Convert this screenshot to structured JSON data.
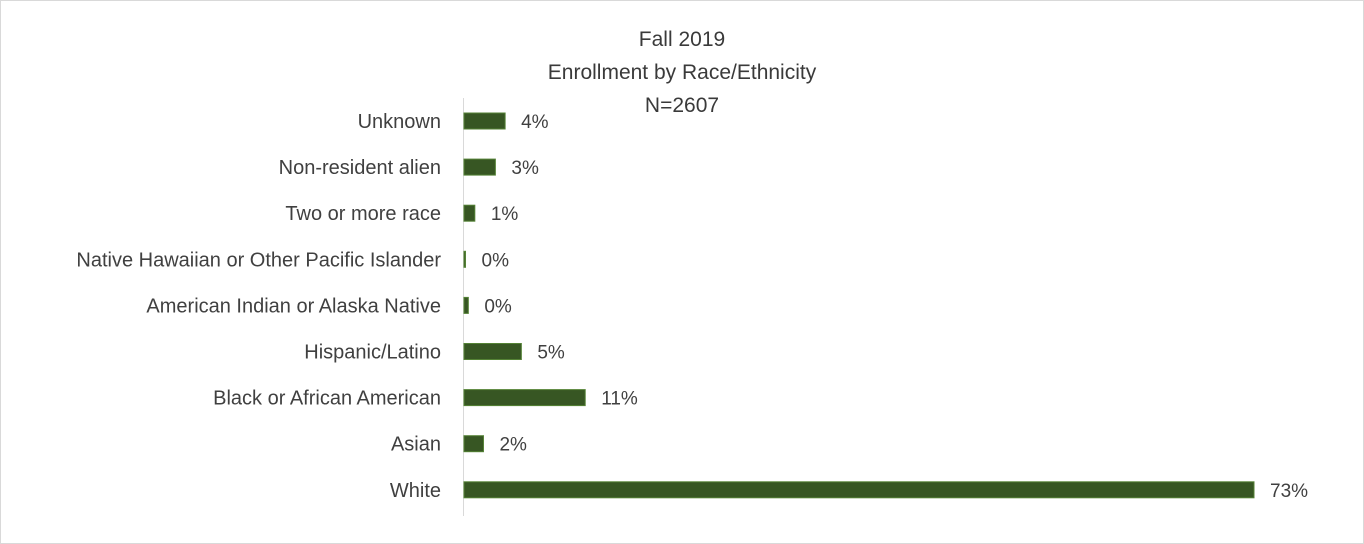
{
  "chart_data": {
    "type": "bar",
    "orientation": "horizontal",
    "title": [
      "Fall 2019",
      "Enrollment by Race/Ethnicity",
      "N=2607"
    ],
    "categories": [
      "Unknown",
      "Non-resident alien",
      "Two or more race",
      "Native Hawaiian or Other Pacific Islander",
      "American Indian or Alaska Native",
      "Hispanic/Latino",
      "Black or African American",
      "Asian",
      "White"
    ],
    "values": [
      3.8,
      2.9,
      1.0,
      0.1,
      0.4,
      5.3,
      11.2,
      1.8,
      73.0
    ],
    "data_labels": [
      "4%",
      "3%",
      "1%",
      "0%",
      "0%",
      "5%",
      "11%",
      "2%",
      "73%"
    ],
    "xlim": [
      0,
      80
    ],
    "grid": false,
    "legend": "none",
    "bar_color": "#375623",
    "bar_edge_color": "#548235"
  }
}
